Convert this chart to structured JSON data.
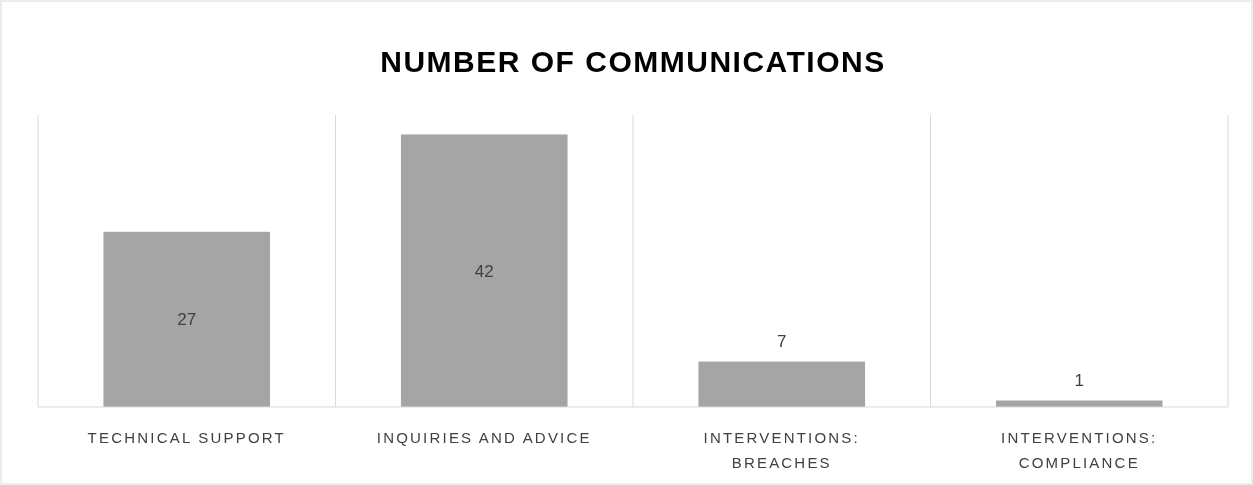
{
  "chart_data": {
    "type": "bar",
    "title": "NUMBER OF COMMUNICATIONS",
    "categories": [
      "TECHNICAL SUPPORT",
      "INQUIRIES AND ADVICE",
      "INTERVENTIONS: BREACHES",
      "INTERVENTIONS: COMPLIANCE"
    ],
    "values": [
      27,
      42,
      7,
      1
    ],
    "color": "#a5a5a5",
    "ylim": [
      0,
      45
    ],
    "data_labels": true,
    "grid": "x",
    "tick_labels": "x"
  }
}
